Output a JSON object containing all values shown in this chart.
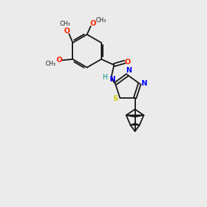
{
  "background_color": "#ebebeb",
  "bond_color": "#1a1a1a",
  "nitrogen_color": "#0000ff",
  "sulfur_color": "#cccc00",
  "oxygen_color": "#ff2200",
  "hydrogen_color": "#008888",
  "fig_width": 3.0,
  "fig_height": 3.0,
  "dpi": 100,
  "xlim": [
    0,
    10
  ],
  "ylim": [
    0,
    10
  ]
}
